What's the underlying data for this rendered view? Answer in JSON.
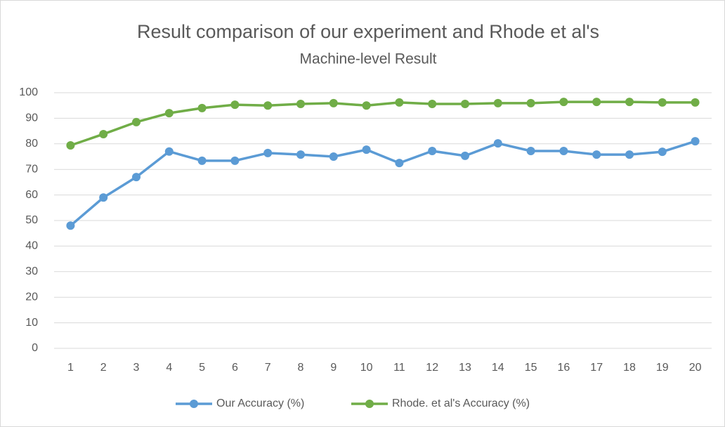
{
  "chart_data": {
    "type": "line",
    "title": "Result comparison of our experiment and Rhode et al's",
    "subtitle": "Machine-level Result",
    "categories": [
      1,
      2,
      3,
      4,
      5,
      6,
      7,
      8,
      9,
      10,
      11,
      12,
      13,
      14,
      15,
      16,
      17,
      18,
      19,
      20
    ],
    "series": [
      {
        "name": "Our Accuracy (%)",
        "color": "#5b9bd5",
        "values": [
          48,
          59,
          67,
          77,
          73.4,
          73.4,
          76.4,
          75.8,
          75,
          77.7,
          72.5,
          77.2,
          75.3,
          80.2,
          77.2,
          77.2,
          75.8,
          75.8,
          76.9,
          81
        ]
      },
      {
        "name": "Rhode. et al's Accuracy (%)",
        "color": "#70ad47",
        "values": [
          79.4,
          83.8,
          88.5,
          92,
          94,
          95.3,
          95,
          95.6,
          95.9,
          95,
          96.2,
          95.6,
          95.6,
          95.9,
          95.9,
          96.4,
          96.4,
          96.4,
          96.2,
          96.2
        ]
      }
    ],
    "ylim": [
      0,
      100
    ],
    "yticks": [
      0,
      10,
      20,
      30,
      40,
      50,
      60,
      70,
      80,
      90,
      100
    ],
    "grid": true,
    "legend": "bottom"
  }
}
